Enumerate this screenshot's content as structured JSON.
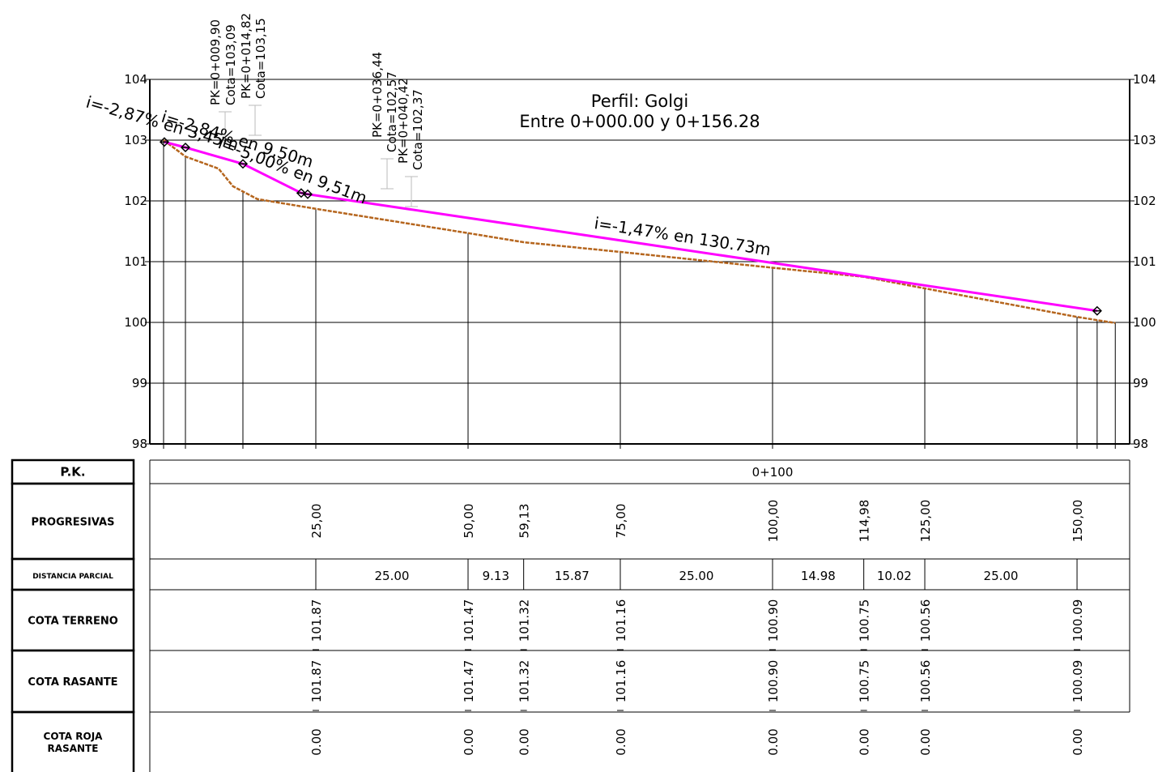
{
  "chart_data": {
    "type": "line",
    "title": "Perfil: Golgi",
    "subtitle": "Entre 0+000.00 y 0+156.28",
    "xlim": [
      -2.26,
      158.64
    ],
    "ylim": [
      98,
      104
    ],
    "yticks": [
      98,
      99,
      100,
      101,
      102,
      103,
      104
    ],
    "grid": true,
    "series": [
      {
        "color": "#b5651d",
        "dashed": true,
        "x": [
          0,
          3.6,
          9.04,
          11.4,
          15.4,
          25,
          50,
          59.13,
          75,
          100,
          114.98,
          125,
          150,
          156.28
        ],
        "values": [
          103.0,
          102.73,
          102.53,
          102.24,
          102.03,
          101.87,
          101.47,
          101.32,
          101.16,
          100.9,
          100.75,
          100.56,
          100.09,
          99.99
        ]
      },
      {
        "color": "#ff00ff",
        "dashed": false,
        "x": [
          0.13,
          3.59,
          13.03,
          22.6,
          23.67,
          153.3
        ],
        "values": [
          102.97,
          102.88,
          102.61,
          102.13,
          102.11,
          100.19
        ]
      }
    ],
    "station_lines": [
      0,
      3.59,
      13.03,
      25,
      50,
      75,
      100,
      125,
      150,
      153.3,
      156.28
    ],
    "slope_labels": [
      "i=-2,87% en 3,45m",
      "i=-2,84% en 9,50m",
      "i=-5,00% en 9,51m",
      "i=-1,47% en 130.73m"
    ],
    "pk_labels": [
      [
        "PK=0+009,90",
        "Cota=103,09"
      ],
      [
        "PK=0+014,82",
        "Cota=103,15"
      ],
      [
        "PK=0+036,44",
        "Cota=102,57"
      ],
      [
        "PK=0+040,42",
        "Cota=102,37"
      ]
    ]
  },
  "table": {
    "row_labels": [
      "P.K.",
      "PROGRESIVAS",
      "DISTANCIA PARCIAL",
      "COTA TERRENO",
      "COTA RASANTE",
      [
        "COTA ROJA",
        "RASANTE"
      ]
    ],
    "pk": {
      "value": 100,
      "label": "0+100"
    },
    "stations": [
      {
        "value": 25,
        "label": "25,00"
      },
      {
        "value": 50,
        "label": "50,00"
      },
      {
        "value": 59.13,
        "label": "59,13"
      },
      {
        "value": 75,
        "label": "75,00"
      },
      {
        "value": 100,
        "label": "100,00"
      },
      {
        "value": 114.98,
        "label": "114,98"
      },
      {
        "value": 125,
        "label": "125,00"
      },
      {
        "value": 150,
        "label": "150,00"
      }
    ],
    "distances": [
      "25.00",
      "9.13",
      "15.87",
      "25.00",
      "14.98",
      "10.02",
      "25.00"
    ],
    "cota_terreno": [
      "101.87",
      "101.47",
      "101.32",
      "101.16",
      "100.90",
      "100.75",
      "100.56",
      "100.09"
    ],
    "cota_rasante": [
      "101.87",
      "101.47",
      "101.32",
      "101.16",
      "100.90",
      "100.75",
      "100.56",
      "100.09"
    ],
    "cota_roja": [
      "0.00",
      "0.00",
      "0.00",
      "0.00",
      "0.00",
      "0.00",
      "0.00",
      "0.00"
    ]
  }
}
